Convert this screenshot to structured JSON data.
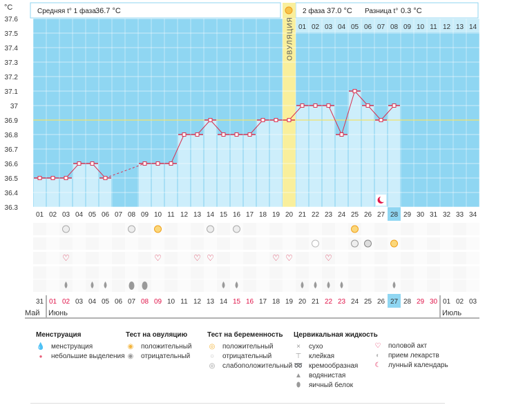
{
  "header": {
    "unit": "°C",
    "phase1": "Средняя t° 1 фаза",
    "phase1_value": "36.7 °C",
    "phase2": "2 фаза",
    "phase2_value": "37.0 °C",
    "diff": "Разница t°",
    "diff_value": "0.3 °C"
  },
  "ovulation_label": "ОВУЛЯЦИЯ",
  "phase2_day_labels": [
    "01",
    "02",
    "03",
    "04",
    "05",
    "06",
    "07",
    "08",
    "09",
    "10",
    "11",
    "12",
    "13",
    "14"
  ],
  "cycle_days": [
    "01",
    "02",
    "03",
    "04",
    "05",
    "06",
    "07",
    "08",
    "09",
    "10",
    "11",
    "12",
    "13",
    "14",
    "15",
    "16",
    "17",
    "18",
    "19",
    "20",
    "21",
    "22",
    "23",
    "24",
    "25",
    "26",
    "27",
    "28",
    "29",
    "30",
    "31",
    "32",
    "33",
    "34"
  ],
  "date_labels": [
    "31",
    "01",
    "02",
    "03",
    "04",
    "05",
    "06",
    "07",
    "08",
    "09",
    "10",
    "11",
    "12",
    "13",
    "14",
    "15",
    "16",
    "17",
    "18",
    "19",
    "20",
    "21",
    "22",
    "23",
    "24",
    "25",
    "26",
    "27",
    "28",
    "29",
    "30",
    "01",
    "02",
    "03"
  ],
  "weekend_date_idx": [
    1,
    2,
    8,
    9,
    15,
    16,
    22,
    23,
    29,
    30
  ],
  "today_idx": 27,
  "months": {
    "may": "Май",
    "june": "Июнь",
    "july": "Июль"
  },
  "chart_data": {
    "type": "line",
    "xlabel": "",
    "ylabel": "°C",
    "ylim": [
      36.3,
      37.6
    ],
    "y_ticks": [
      "37.6",
      "37.5",
      "37.4",
      "37.3",
      "37.2",
      "37.1",
      "37",
      "36.9",
      "36.8",
      "36.7",
      "36.6",
      "36.5",
      "36.4",
      "36.3"
    ],
    "coverline": 36.9,
    "ovulation_day": 20,
    "x": [
      1,
      2,
      3,
      4,
      5,
      6,
      7,
      8,
      9,
      10,
      11,
      12,
      13,
      14,
      15,
      16,
      17,
      18,
      19,
      20,
      21,
      22,
      23,
      24,
      25,
      26,
      27,
      28
    ],
    "values": [
      36.5,
      36.5,
      36.5,
      36.6,
      36.6,
      36.5,
      null,
      null,
      36.6,
      36.6,
      36.6,
      36.8,
      36.8,
      36.9,
      36.8,
      36.8,
      36.8,
      36.9,
      36.9,
      36.9,
      37.0,
      37.0,
      37.0,
      36.8,
      37.1,
      37.0,
      36.9,
      37.0
    ],
    "dashed_segment": [
      6,
      9
    ]
  },
  "markers": {
    "ovulation_test_negative": [
      3,
      8,
      14,
      16
    ],
    "ovulation_test_positive": [
      10,
      25
    ],
    "pregnancy_weak_positive": [
      26
    ],
    "pregnancy_negative": [
      22
    ],
    "pregnancy_test_negative2": [
      25
    ],
    "pregnancy_positive": [
      28
    ],
    "intercourse": [
      3,
      10,
      13,
      14,
      19,
      20,
      23
    ],
    "medicine": [],
    "lunar_calendar": [
      27
    ],
    "watery": [
      3,
      5,
      6,
      15,
      16,
      21,
      22,
      23,
      24,
      28
    ],
    "egg_white": [
      8,
      9
    ],
    "sticky": [
      4
    ]
  },
  "legend": {
    "menstruation": {
      "title": "Менструация",
      "items": [
        "менструация",
        "небольшие выделения"
      ]
    },
    "ovulation_test": {
      "title": "Тест на овуляцию",
      "items": [
        "положительный",
        "отрицательный"
      ]
    },
    "pregnancy_test": {
      "title": "Тест на беременность",
      "items": [
        "положительный",
        "отрицательный",
        "слабоположительный"
      ]
    },
    "cervical": {
      "title": "Цервикальная жидкость",
      "items": [
        "сухо",
        "клейкая",
        "кремообразная",
        "водянистая",
        "яичный белок"
      ]
    },
    "other": {
      "items": [
        "половой акт",
        "прием лекарств",
        "лунный календарь"
      ]
    }
  },
  "colors": {
    "sky": "#8fd6f2",
    "bar": "#cdeefb",
    "line": "#d83050",
    "ovulation": "#f9ef9c",
    "weekend": "#e0154a"
  }
}
